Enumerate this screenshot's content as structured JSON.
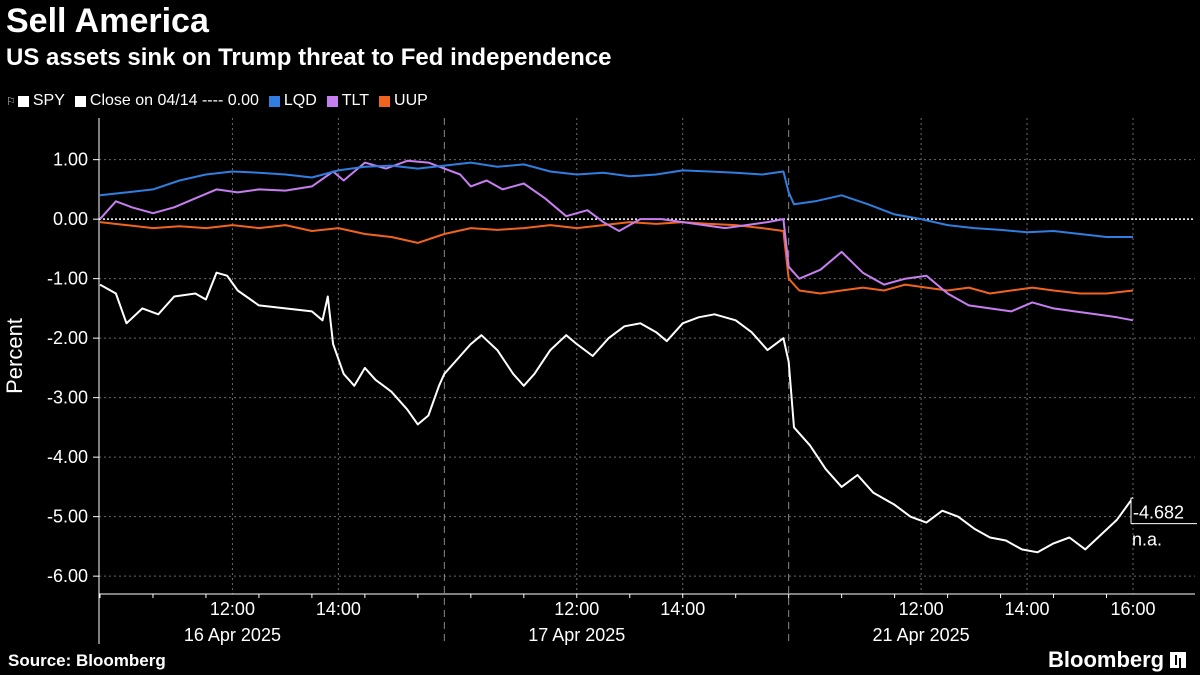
{
  "title": "Sell America",
  "subtitle": "US assets sink on Trump threat to Fed independence",
  "legend": [
    {
      "label": "SPY",
      "color": "#ffffff"
    },
    {
      "label": "Close on 04/14 ---- 0.00",
      "color": "#ffffff"
    },
    {
      "label": "LQD",
      "color": "#2f7ee0"
    },
    {
      "label": "TLT",
      "color": "#c77ef0"
    },
    {
      "label": "UUP",
      "color": "#f0641e"
    }
  ],
  "source": "Source: Bloomberg",
  "brand": "Bloomberg",
  "chart_data": {
    "type": "line",
    "title": "Sell America",
    "ylabel": "Percent",
    "ylim": [
      -6.3,
      1.7
    ],
    "y_ticks": [
      1.0,
      0.0,
      -1.0,
      -2.0,
      -3.0,
      -4.0,
      -5.0,
      -6.0
    ],
    "y_tick_labels": [
      "1.00",
      "0.00",
      "-1.00",
      "-2.00",
      "-3.00",
      "-4.00",
      "-5.00",
      "-6.00"
    ],
    "x_unit": "trading hours (0 = 16 Apr 2025 09:30 ET, 6.5 h per session)",
    "xlim": [
      0,
      19.5
    ],
    "x_ticks": [
      {
        "x": 2.5,
        "label": "12:00"
      },
      {
        "x": 4.5,
        "label": "14:00"
      },
      {
        "x": 9.0,
        "label": "12:00"
      },
      {
        "x": 11.0,
        "label": "14:00"
      },
      {
        "x": 15.5,
        "label": "12:00"
      },
      {
        "x": 17.5,
        "label": "14:00"
      },
      {
        "x": 19.5,
        "label": "16:00"
      }
    ],
    "day_labels": [
      {
        "x": 2.5,
        "label": "16 Apr 2025"
      },
      {
        "x": 9.0,
        "label": "17 Apr 2025"
      },
      {
        "x": 15.5,
        "label": "21 Apr 2025"
      }
    ],
    "session_breaks": [
      6.5,
      13.0
    ],
    "reference_line": {
      "y": 0.0,
      "label": "Close on 04/14"
    },
    "end_label": {
      "value": "-4.682",
      "secondary": "n.a."
    },
    "series": [
      {
        "name": "SPY",
        "color": "#ffffff",
        "points": [
          [
            0,
            -1.1
          ],
          [
            0.3,
            -1.25
          ],
          [
            0.5,
            -1.75
          ],
          [
            0.8,
            -1.5
          ],
          [
            1.1,
            -1.6
          ],
          [
            1.4,
            -1.3
          ],
          [
            1.8,
            -1.25
          ],
          [
            2.0,
            -1.35
          ],
          [
            2.2,
            -0.9
          ],
          [
            2.4,
            -0.95
          ],
          [
            2.6,
            -1.2
          ],
          [
            3.0,
            -1.45
          ],
          [
            3.5,
            -1.5
          ],
          [
            4.0,
            -1.55
          ],
          [
            4.2,
            -1.7
          ],
          [
            4.3,
            -1.3
          ],
          [
            4.4,
            -2.1
          ],
          [
            4.6,
            -2.6
          ],
          [
            4.8,
            -2.8
          ],
          [
            5.0,
            -2.5
          ],
          [
            5.2,
            -2.7
          ],
          [
            5.5,
            -2.9
          ],
          [
            5.8,
            -3.2
          ],
          [
            6.0,
            -3.45
          ],
          [
            6.2,
            -3.3
          ],
          [
            6.4,
            -2.8
          ],
          [
            6.5,
            -2.6
          ],
          [
            6.8,
            -2.3
          ],
          [
            7.0,
            -2.1
          ],
          [
            7.2,
            -1.95
          ],
          [
            7.5,
            -2.2
          ],
          [
            7.8,
            -2.6
          ],
          [
            8.0,
            -2.8
          ],
          [
            8.2,
            -2.6
          ],
          [
            8.5,
            -2.2
          ],
          [
            8.8,
            -1.95
          ],
          [
            9.0,
            -2.1
          ],
          [
            9.3,
            -2.3
          ],
          [
            9.6,
            -2.0
          ],
          [
            9.9,
            -1.8
          ],
          [
            10.2,
            -1.75
          ],
          [
            10.5,
            -1.9
          ],
          [
            10.7,
            -2.05
          ],
          [
            11.0,
            -1.75
          ],
          [
            11.3,
            -1.65
          ],
          [
            11.6,
            -1.6
          ],
          [
            12.0,
            -1.7
          ],
          [
            12.3,
            -1.9
          ],
          [
            12.6,
            -2.2
          ],
          [
            12.9,
            -2.0
          ],
          [
            13.0,
            -2.4
          ],
          [
            13.1,
            -3.5
          ],
          [
            13.4,
            -3.8
          ],
          [
            13.7,
            -4.2
          ],
          [
            14.0,
            -4.5
          ],
          [
            14.3,
            -4.3
          ],
          [
            14.6,
            -4.6
          ],
          [
            15.0,
            -4.8
          ],
          [
            15.3,
            -5.0
          ],
          [
            15.6,
            -5.1
          ],
          [
            15.9,
            -4.9
          ],
          [
            16.2,
            -5.0
          ],
          [
            16.5,
            -5.2
          ],
          [
            16.8,
            -5.35
          ],
          [
            17.1,
            -5.4
          ],
          [
            17.4,
            -5.55
          ],
          [
            17.7,
            -5.6
          ],
          [
            18.0,
            -5.45
          ],
          [
            18.3,
            -5.35
          ],
          [
            18.6,
            -5.55
          ],
          [
            18.9,
            -5.3
          ],
          [
            19.2,
            -5.05
          ],
          [
            19.5,
            -4.68
          ]
        ]
      },
      {
        "name": "LQD",
        "color": "#2f7ee0",
        "points": [
          [
            0,
            0.4
          ],
          [
            0.5,
            0.45
          ],
          [
            1.0,
            0.5
          ],
          [
            1.5,
            0.65
          ],
          [
            2.0,
            0.75
          ],
          [
            2.5,
            0.8
          ],
          [
            3.0,
            0.78
          ],
          [
            3.5,
            0.75
          ],
          [
            4.0,
            0.7
          ],
          [
            4.5,
            0.82
          ],
          [
            5.0,
            0.88
          ],
          [
            5.5,
            0.9
          ],
          [
            6.0,
            0.85
          ],
          [
            6.5,
            0.9
          ],
          [
            7.0,
            0.95
          ],
          [
            7.5,
            0.88
          ],
          [
            8.0,
            0.92
          ],
          [
            8.5,
            0.8
          ],
          [
            9.0,
            0.75
          ],
          [
            9.5,
            0.78
          ],
          [
            10.0,
            0.72
          ],
          [
            10.5,
            0.75
          ],
          [
            11.0,
            0.82
          ],
          [
            11.5,
            0.8
          ],
          [
            12.0,
            0.78
          ],
          [
            12.5,
            0.75
          ],
          [
            12.9,
            0.8
          ],
          [
            13.0,
            0.45
          ],
          [
            13.1,
            0.25
          ],
          [
            13.5,
            0.3
          ],
          [
            14.0,
            0.4
          ],
          [
            14.5,
            0.25
          ],
          [
            15.0,
            0.08
          ],
          [
            15.5,
            0.0
          ],
          [
            16.0,
            -0.1
          ],
          [
            16.5,
            -0.15
          ],
          [
            17.0,
            -0.18
          ],
          [
            17.5,
            -0.22
          ],
          [
            18.0,
            -0.2
          ],
          [
            18.5,
            -0.25
          ],
          [
            19.0,
            -0.3
          ],
          [
            19.5,
            -0.3
          ]
        ]
      },
      {
        "name": "TLT",
        "color": "#c77ef0",
        "points": [
          [
            0,
            0.0
          ],
          [
            0.3,
            0.3
          ],
          [
            0.6,
            0.2
          ],
          [
            1.0,
            0.1
          ],
          [
            1.4,
            0.2
          ],
          [
            1.8,
            0.35
          ],
          [
            2.2,
            0.5
          ],
          [
            2.6,
            0.45
          ],
          [
            3.0,
            0.5
          ],
          [
            3.5,
            0.48
          ],
          [
            4.0,
            0.55
          ],
          [
            4.4,
            0.8
          ],
          [
            4.6,
            0.65
          ],
          [
            5.0,
            0.95
          ],
          [
            5.4,
            0.85
          ],
          [
            5.8,
            0.98
          ],
          [
            6.2,
            0.95
          ],
          [
            6.5,
            0.85
          ],
          [
            6.8,
            0.75
          ],
          [
            7.0,
            0.55
          ],
          [
            7.3,
            0.65
          ],
          [
            7.6,
            0.5
          ],
          [
            8.0,
            0.6
          ],
          [
            8.4,
            0.35
          ],
          [
            8.8,
            0.05
          ],
          [
            9.2,
            0.15
          ],
          [
            9.5,
            -0.05
          ],
          [
            9.8,
            -0.2
          ],
          [
            10.2,
            0.0
          ],
          [
            10.6,
            0.0
          ],
          [
            11.0,
            -0.05
          ],
          [
            11.4,
            -0.1
          ],
          [
            11.8,
            -0.15
          ],
          [
            12.2,
            -0.1
          ],
          [
            12.6,
            -0.05
          ],
          [
            12.9,
            0.0
          ],
          [
            13.0,
            -0.8
          ],
          [
            13.2,
            -1.0
          ],
          [
            13.6,
            -0.85
          ],
          [
            14.0,
            -0.55
          ],
          [
            14.4,
            -0.9
          ],
          [
            14.8,
            -1.1
          ],
          [
            15.2,
            -1.0
          ],
          [
            15.6,
            -0.95
          ],
          [
            16.0,
            -1.25
          ],
          [
            16.4,
            -1.45
          ],
          [
            16.8,
            -1.5
          ],
          [
            17.2,
            -1.55
          ],
          [
            17.6,
            -1.4
          ],
          [
            18.0,
            -1.5
          ],
          [
            18.4,
            -1.55
          ],
          [
            18.8,
            -1.6
          ],
          [
            19.2,
            -1.65
          ],
          [
            19.5,
            -1.7
          ]
        ]
      },
      {
        "name": "UUP",
        "color": "#f0641e",
        "points": [
          [
            0,
            -0.05
          ],
          [
            0.5,
            -0.1
          ],
          [
            1.0,
            -0.15
          ],
          [
            1.5,
            -0.12
          ],
          [
            2.0,
            -0.15
          ],
          [
            2.5,
            -0.1
          ],
          [
            3.0,
            -0.15
          ],
          [
            3.5,
            -0.1
          ],
          [
            4.0,
            -0.2
          ],
          [
            4.5,
            -0.15
          ],
          [
            5.0,
            -0.25
          ],
          [
            5.5,
            -0.3
          ],
          [
            6.0,
            -0.4
          ],
          [
            6.5,
            -0.25
          ],
          [
            7.0,
            -0.15
          ],
          [
            7.5,
            -0.18
          ],
          [
            8.0,
            -0.15
          ],
          [
            8.5,
            -0.1
          ],
          [
            9.0,
            -0.15
          ],
          [
            9.5,
            -0.1
          ],
          [
            10.0,
            -0.05
          ],
          [
            10.5,
            -0.08
          ],
          [
            11.0,
            -0.05
          ],
          [
            11.5,
            -0.08
          ],
          [
            12.0,
            -0.1
          ],
          [
            12.5,
            -0.15
          ],
          [
            12.9,
            -0.2
          ],
          [
            13.0,
            -1.0
          ],
          [
            13.2,
            -1.2
          ],
          [
            13.6,
            -1.25
          ],
          [
            14.0,
            -1.2
          ],
          [
            14.4,
            -1.15
          ],
          [
            14.8,
            -1.2
          ],
          [
            15.2,
            -1.1
          ],
          [
            15.6,
            -1.15
          ],
          [
            16.0,
            -1.2
          ],
          [
            16.4,
            -1.15
          ],
          [
            16.8,
            -1.25
          ],
          [
            17.2,
            -1.2
          ],
          [
            17.6,
            -1.15
          ],
          [
            18.0,
            -1.2
          ],
          [
            18.5,
            -1.25
          ],
          [
            19.0,
            -1.25
          ],
          [
            19.5,
            -1.2
          ]
        ]
      }
    ]
  }
}
